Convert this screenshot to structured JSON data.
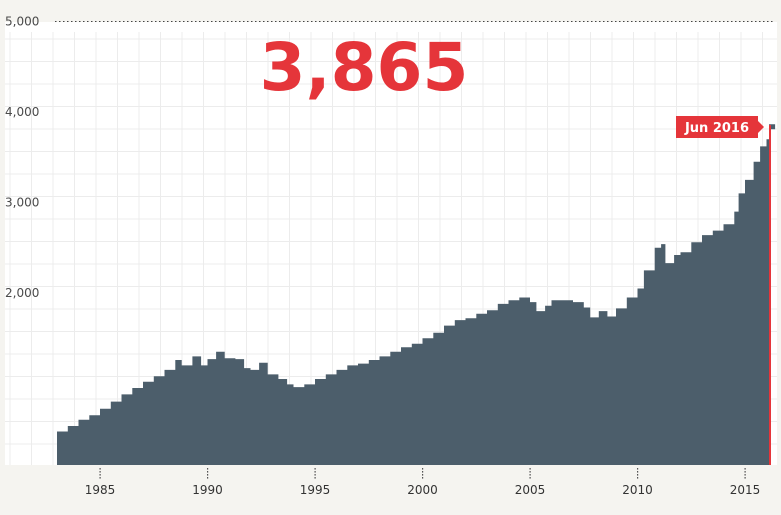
{
  "headline": {
    "value": "3,865"
  },
  "marker": {
    "label": "Jun 2016",
    "color": "#e5353a"
  },
  "chart_data": {
    "type": "area",
    "title": "",
    "xlabel": "",
    "ylabel": "",
    "xlim": [
      1981.0,
      2016.8
    ],
    "ylim": [
      0,
      5000
    ],
    "yticks": [
      {
        "value": 2000,
        "label": "2,000"
      },
      {
        "value": 3000,
        "label": "3,000"
      },
      {
        "value": 4000,
        "label": "4,000"
      },
      {
        "value": 5000,
        "label": "5,000"
      }
    ],
    "xticks": [
      {
        "value": 1985,
        "label": "1985"
      },
      {
        "value": 1990,
        "label": "1990"
      },
      {
        "value": 1995,
        "label": "1995"
      },
      {
        "value": 2000,
        "label": "2000"
      },
      {
        "value": 2005,
        "label": "2005"
      },
      {
        "value": 2010,
        "label": "2010"
      },
      {
        "value": 2015,
        "label": "2015"
      }
    ],
    "grid": true,
    "fill_color": "#4c5e6b",
    "series": [
      {
        "values": [
          [
            1983.0,
            470
          ],
          [
            1983.5,
            530
          ],
          [
            1984.0,
            600
          ],
          [
            1984.5,
            650
          ],
          [
            1985.0,
            720
          ],
          [
            1985.5,
            800
          ],
          [
            1986.0,
            880
          ],
          [
            1986.5,
            950
          ],
          [
            1987.0,
            1020
          ],
          [
            1987.5,
            1080
          ],
          [
            1988.0,
            1150
          ],
          [
            1988.5,
            1260
          ],
          [
            1988.8,
            1200
          ],
          [
            1989.3,
            1300
          ],
          [
            1989.7,
            1200
          ],
          [
            1990.0,
            1270
          ],
          [
            1990.4,
            1350
          ],
          [
            1990.8,
            1280
          ],
          [
            1991.3,
            1270
          ],
          [
            1991.7,
            1170
          ],
          [
            1992.0,
            1150
          ],
          [
            1992.4,
            1230
          ],
          [
            1992.8,
            1100
          ],
          [
            1993.3,
            1050
          ],
          [
            1993.7,
            990
          ],
          [
            1994.0,
            960
          ],
          [
            1994.5,
            990
          ],
          [
            1995.0,
            1050
          ],
          [
            1995.5,
            1100
          ],
          [
            1996.0,
            1150
          ],
          [
            1996.5,
            1200
          ],
          [
            1997.0,
            1220
          ],
          [
            1997.5,
            1260
          ],
          [
            1998.0,
            1300
          ],
          [
            1998.5,
            1350
          ],
          [
            1999.0,
            1400
          ],
          [
            1999.5,
            1440
          ],
          [
            2000.0,
            1500
          ],
          [
            2000.5,
            1560
          ],
          [
            2001.0,
            1640
          ],
          [
            2001.5,
            1700
          ],
          [
            2002.0,
            1720
          ],
          [
            2002.5,
            1770
          ],
          [
            2003.0,
            1810
          ],
          [
            2003.5,
            1880
          ],
          [
            2004.0,
            1920
          ],
          [
            2004.5,
            1950
          ],
          [
            2005.0,
            1900
          ],
          [
            2005.3,
            1800
          ],
          [
            2005.7,
            1860
          ],
          [
            2006.0,
            1920
          ],
          [
            2006.5,
            1920
          ],
          [
            2007.0,
            1900
          ],
          [
            2007.5,
            1840
          ],
          [
            2007.8,
            1730
          ],
          [
            2008.2,
            1800
          ],
          [
            2008.6,
            1740
          ],
          [
            2009.0,
            1830
          ],
          [
            2009.5,
            1950
          ],
          [
            2010.0,
            2050
          ],
          [
            2010.3,
            2250
          ],
          [
            2010.8,
            2500
          ],
          [
            2011.1,
            2540
          ],
          [
            2011.3,
            2330
          ],
          [
            2011.7,
            2420
          ],
          [
            2012.0,
            2450
          ],
          [
            2012.5,
            2560
          ],
          [
            2013.0,
            2640
          ],
          [
            2013.5,
            2690
          ],
          [
            2014.0,
            2760
          ],
          [
            2014.5,
            2900
          ],
          [
            2014.7,
            3100
          ],
          [
            2015.0,
            3250
          ],
          [
            2015.4,
            3450
          ],
          [
            2015.7,
            3620
          ],
          [
            2016.0,
            3700
          ],
          [
            2016.2,
            3810
          ],
          [
            2016.4,
            3865
          ]
        ]
      }
    ]
  }
}
